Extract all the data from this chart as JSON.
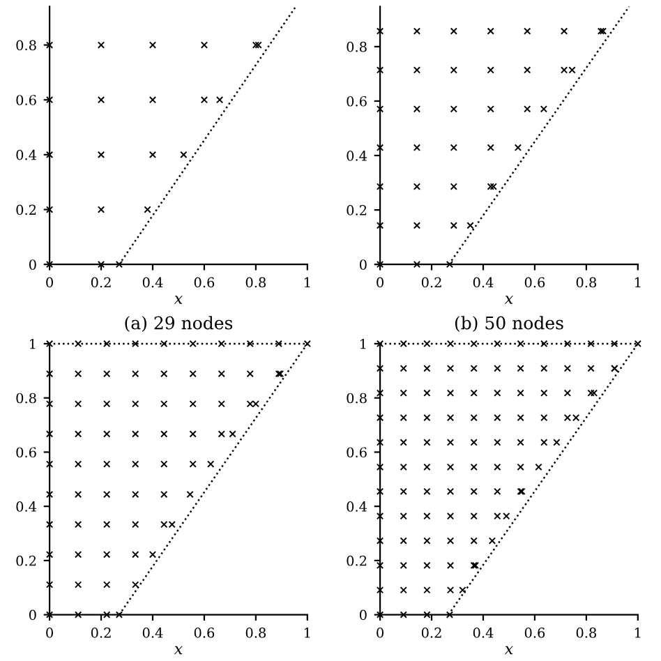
{
  "chart_data": [
    {
      "type": "scatter",
      "title": "(a) 29 nodes",
      "xlabel": "x",
      "xlim": [
        0,
        1
      ],
      "ylim": [
        0,
        0.94
      ],
      "xticks": [
        0,
        0.2,
        0.4,
        0.6,
        0.8,
        1
      ],
      "yticks": [
        0,
        0.2,
        0.4,
        0.6,
        0.8
      ],
      "grid": false,
      "legend": false,
      "marker": "cross",
      "series": [
        {
          "type": "scatter",
          "color": "#000000",
          "x": [
            0,
            0.2,
            0.27,
            0,
            0.2,
            0.38,
            0,
            0.2,
            0.4,
            0.52,
            0,
            0.2,
            0.4,
            0.6,
            0.66,
            0,
            0.2,
            0.4,
            0.6,
            0.8,
            0.81
          ],
          "values": [
            0,
            0,
            0,
            0.2,
            0.2,
            0.2,
            0.4,
            0.4,
            0.4,
            0.4,
            0.6,
            0.6,
            0.6,
            0.6,
            0.6,
            0.8,
            0.8,
            0.8,
            0.8,
            0.8,
            0.8
          ]
        },
        {
          "type": "line",
          "color": "#000000",
          "line_style": "dotted",
          "marker": "none",
          "x": [
            0.27,
            0.955
          ],
          "values": [
            0,
            0.94
          ]
        }
      ]
    },
    {
      "type": "scatter",
      "title": "(b) 50 nodes",
      "xlabel": "x",
      "xlim": [
        0,
        1
      ],
      "ylim": [
        0,
        0.947
      ],
      "xticks": [
        0,
        0.2,
        0.4,
        0.6,
        0.8,
        1
      ],
      "yticks": [
        0,
        0.2,
        0.4,
        0.6,
        0.8
      ],
      "grid": false,
      "legend": false,
      "marker": "cross",
      "series": [
        {
          "type": "scatter",
          "color": "#000000",
          "x": [
            0,
            0.143,
            0.27,
            0,
            0.143,
            0.286,
            0.35,
            0,
            0.143,
            0.286,
            0.429,
            0.44,
            0,
            0.143,
            0.286,
            0.429,
            0.535,
            0,
            0.143,
            0.286,
            0.429,
            0.571,
            0.635,
            0,
            0.143,
            0.286,
            0.429,
            0.571,
            0.714,
            0.745,
            0,
            0.143,
            0.286,
            0.429,
            0.571,
            0.714,
            0.857,
            0.865
          ],
          "values": [
            0,
            0,
            0,
            0.143,
            0.143,
            0.143,
            0.143,
            0.286,
            0.286,
            0.286,
            0.286,
            0.286,
            0.429,
            0.429,
            0.429,
            0.429,
            0.429,
            0.571,
            0.571,
            0.571,
            0.571,
            0.571,
            0.571,
            0.714,
            0.714,
            0.714,
            0.714,
            0.714,
            0.714,
            0.714,
            0.857,
            0.857,
            0.857,
            0.857,
            0.857,
            0.857,
            0.857,
            0.857
          ]
        },
        {
          "type": "line",
          "color": "#000000",
          "line_style": "dotted",
          "marker": "none",
          "x": [
            0.267,
            0.966
          ],
          "values": [
            0,
            0.947
          ]
        }
      ]
    },
    {
      "type": "scatter",
      "xlabel": "x",
      "xlim": [
        0,
        1
      ],
      "ylim": [
        0,
        1
      ],
      "xticks": [
        0,
        0.2,
        0.4,
        0.6,
        0.8,
        1
      ],
      "yticks": [
        0,
        0.2,
        0.4,
        0.6,
        0.8,
        1
      ],
      "grid": false,
      "legend": false,
      "marker": "cross",
      "series": [
        {
          "type": "scatter",
          "color": "#000000",
          "x": [
            0,
            0.111,
            0.222,
            0.27,
            0,
            0.111,
            0.222,
            0.333,
            0,
            0.111,
            0.222,
            0.333,
            0.4,
            0,
            0.111,
            0.222,
            0.333,
            0.444,
            0.475,
            0,
            0.111,
            0.222,
            0.333,
            0.444,
            0.545,
            0,
            0.111,
            0.222,
            0.333,
            0.444,
            0.556,
            0.625,
            0,
            0.111,
            0.222,
            0.333,
            0.444,
            0.556,
            0.667,
            0.71,
            0,
            0.111,
            0.222,
            0.333,
            0.444,
            0.556,
            0.667,
            0.778,
            0.8,
            0,
            0.111,
            0.222,
            0.333,
            0.444,
            0.556,
            0.667,
            0.778,
            0.889,
            0.895,
            0,
            0.111,
            0.222,
            0.333,
            0.444,
            0.556,
            0.667,
            0.778,
            0.889,
            1
          ],
          "values": [
            0,
            0,
            0,
            0,
            0.111,
            0.111,
            0.111,
            0.111,
            0.222,
            0.222,
            0.222,
            0.222,
            0.222,
            0.333,
            0.333,
            0.333,
            0.333,
            0.333,
            0.333,
            0.444,
            0.444,
            0.444,
            0.444,
            0.444,
            0.444,
            0.556,
            0.556,
            0.556,
            0.556,
            0.556,
            0.556,
            0.556,
            0.667,
            0.667,
            0.667,
            0.667,
            0.667,
            0.667,
            0.667,
            0.667,
            0.778,
            0.778,
            0.778,
            0.778,
            0.778,
            0.778,
            0.778,
            0.778,
            0.778,
            0.889,
            0.889,
            0.889,
            0.889,
            0.889,
            0.889,
            0.889,
            0.889,
            0.889,
            0.889,
            1,
            1,
            1,
            1,
            1,
            1,
            1,
            1,
            1,
            1
          ]
        },
        {
          "type": "line",
          "color": "#000000",
          "line_style": "dotted",
          "marker": "none",
          "x": [
            0.27,
            1,
            0
          ],
          "values": [
            0,
            1,
            1
          ]
        }
      ]
    },
    {
      "type": "scatter",
      "xlabel": "x",
      "xlim": [
        0,
        1
      ],
      "ylim": [
        0,
        1
      ],
      "xticks": [
        0,
        0.2,
        0.4,
        0.6,
        0.8,
        1
      ],
      "yticks": [
        0,
        0.2,
        0.4,
        0.6,
        0.8,
        1
      ],
      "grid": false,
      "legend": false,
      "marker": "cross",
      "series": [
        {
          "type": "scatter",
          "color": "#000000",
          "x": [
            0,
            0.091,
            0.182,
            0.27,
            0,
            0.091,
            0.182,
            0.273,
            0.32,
            0,
            0.091,
            0.182,
            0.273,
            0.364,
            0.37,
            0,
            0.091,
            0.182,
            0.273,
            0.364,
            0.435,
            0,
            0.091,
            0.182,
            0.273,
            0.364,
            0.455,
            0.49,
            0,
            0.091,
            0.182,
            0.273,
            0.364,
            0.455,
            0.545,
            0.55,
            0,
            0.091,
            0.182,
            0.273,
            0.364,
            0.455,
            0.545,
            0.615,
            0,
            0.091,
            0.182,
            0.273,
            0.364,
            0.455,
            0.545,
            0.636,
            0.685,
            0,
            0.091,
            0.182,
            0.273,
            0.364,
            0.455,
            0.545,
            0.636,
            0.727,
            0.76,
            0,
            0.091,
            0.182,
            0.273,
            0.364,
            0.455,
            0.545,
            0.636,
            0.727,
            0.818,
            0.83,
            0,
            0.091,
            0.182,
            0.273,
            0.364,
            0.455,
            0.545,
            0.636,
            0.727,
            0.818,
            0.909,
            0.91,
            0,
            0.091,
            0.182,
            0.273,
            0.364,
            0.455,
            0.545,
            0.636,
            0.727,
            0.818,
            0.909,
            1
          ],
          "values": [
            0,
            0,
            0,
            0,
            0.091,
            0.091,
            0.091,
            0.091,
            0.091,
            0.182,
            0.182,
            0.182,
            0.182,
            0.182,
            0.182,
            0.273,
            0.273,
            0.273,
            0.273,
            0.273,
            0.273,
            0.364,
            0.364,
            0.364,
            0.364,
            0.364,
            0.364,
            0.364,
            0.455,
            0.455,
            0.455,
            0.455,
            0.455,
            0.455,
            0.455,
            0.455,
            0.545,
            0.545,
            0.545,
            0.545,
            0.545,
            0.545,
            0.545,
            0.545,
            0.636,
            0.636,
            0.636,
            0.636,
            0.636,
            0.636,
            0.636,
            0.636,
            0.636,
            0.727,
            0.727,
            0.727,
            0.727,
            0.727,
            0.727,
            0.727,
            0.727,
            0.727,
            0.727,
            0.818,
            0.818,
            0.818,
            0.818,
            0.818,
            0.818,
            0.818,
            0.818,
            0.818,
            0.818,
            0.818,
            0.909,
            0.909,
            0.909,
            0.909,
            0.909,
            0.909,
            0.909,
            0.909,
            0.909,
            0.909,
            0.909,
            0.909,
            1,
            1,
            1,
            1,
            1,
            1,
            1,
            1,
            1,
            1,
            1,
            1
          ]
        },
        {
          "type": "line",
          "color": "#000000",
          "line_style": "dotted",
          "marker": "none",
          "x": [
            0.265,
            1,
            0
          ],
          "values": [
            0,
            1,
            1
          ]
        }
      ]
    }
  ]
}
